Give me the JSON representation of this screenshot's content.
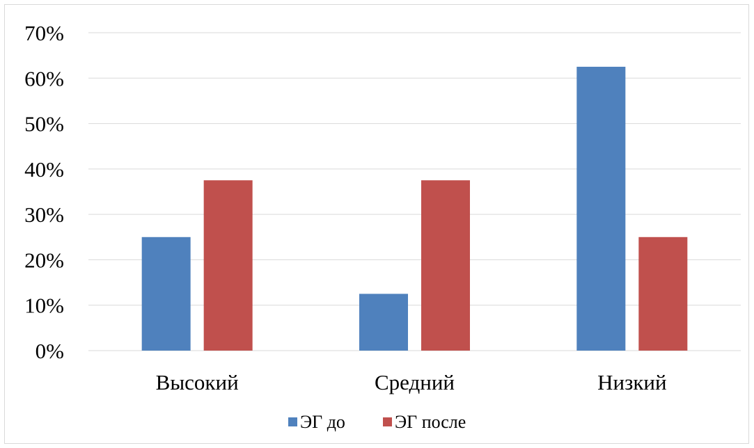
{
  "chart_data": {
    "type": "bar",
    "title": "",
    "xlabel": "",
    "ylabel": "",
    "categories": [
      "Высокий",
      "Средний",
      "Низкий"
    ],
    "series": [
      {
        "name": "ЭГ до",
        "values": [
          25,
          12.5,
          62.5
        ],
        "color": "#4f81bd"
      },
      {
        "name": "ЭГ после",
        "values": [
          37.5,
          37.5,
          25
        ],
        "color": "#c0504d"
      }
    ],
    "ylim": [
      0,
      70
    ],
    "yticks": [
      0,
      10,
      20,
      30,
      40,
      50,
      60,
      70
    ],
    "ytick_labels": [
      "0%",
      "10%",
      "20%",
      "30%",
      "40%",
      "50%",
      "60%",
      "70%"
    ],
    "grid": true,
    "legend_position": "bottom"
  }
}
